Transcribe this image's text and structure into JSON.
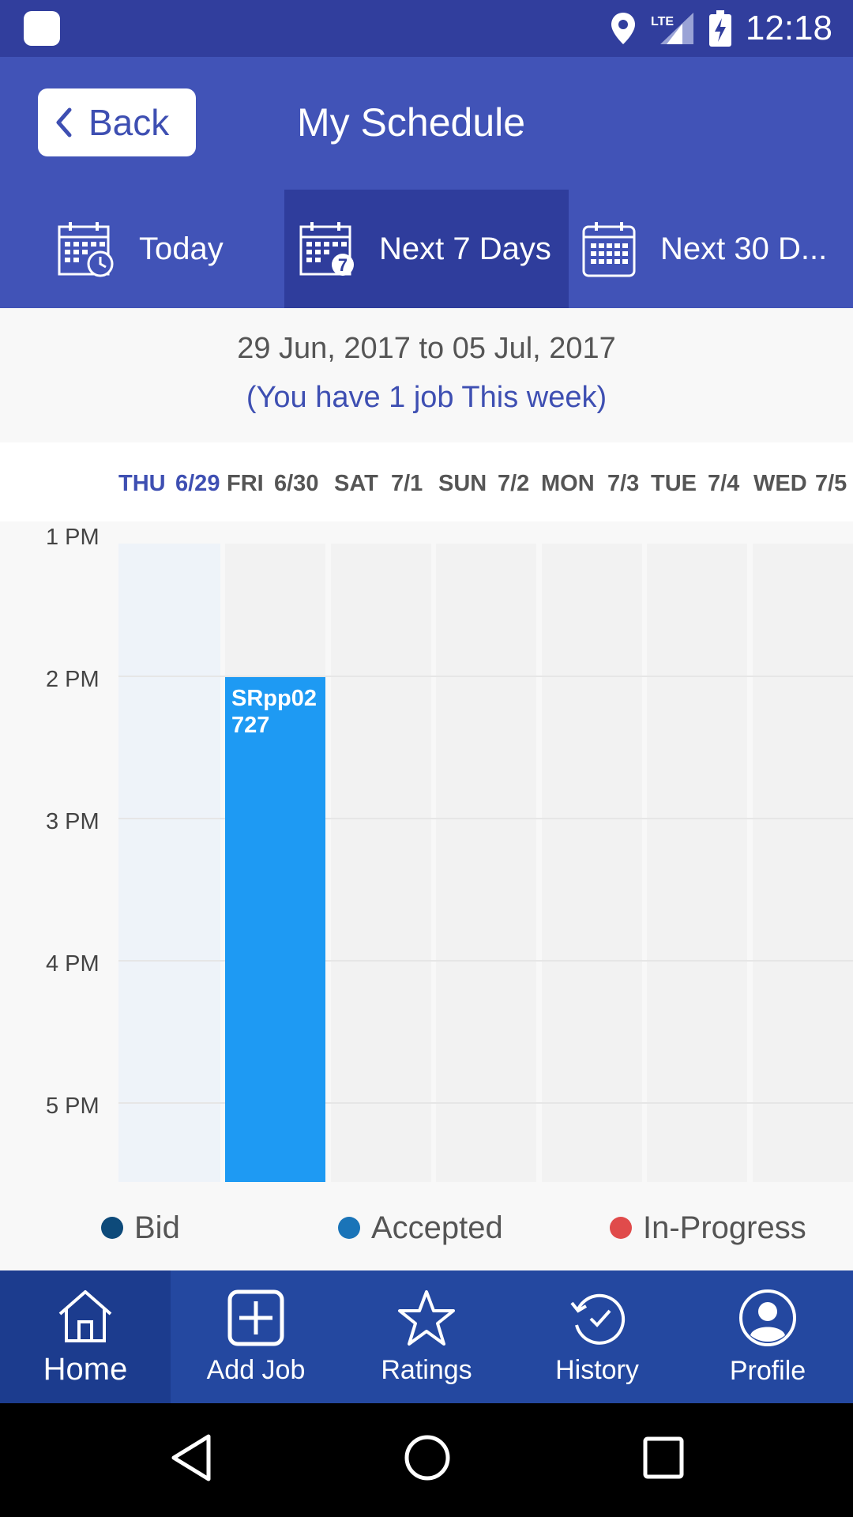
{
  "status_bar": {
    "time": "12:18",
    "network": "LTE"
  },
  "header": {
    "back_label": "Back",
    "title": "My Schedule"
  },
  "tabs": [
    {
      "label": "Today",
      "icon": "calendar-clock-icon"
    },
    {
      "label": "Next 7 Days",
      "icon": "calendar-seven-icon",
      "badge": "7"
    },
    {
      "label": "Next 30 D...",
      "icon": "calendar-month-icon"
    }
  ],
  "range": {
    "dates": "29 Jun, 2017 to 05 Jul, 2017",
    "jobs_note": "(You have 1 job This week)"
  },
  "days": [
    {
      "name": "THU",
      "date": "6/29"
    },
    {
      "name": "FRI",
      "date": "6/30"
    },
    {
      "name": "SAT",
      "date": "7/1"
    },
    {
      "name": "SUN",
      "date": "7/2"
    },
    {
      "name": "MON",
      "date": "7/3"
    },
    {
      "name": "TUE",
      "date": "7/4"
    },
    {
      "name": "WED",
      "date": "7/5"
    }
  ],
  "times": [
    "1 PM",
    "2 PM",
    "3 PM",
    "4 PM",
    "5 PM"
  ],
  "event": {
    "label": "SRpp02727",
    "day": "FRI",
    "start": "2 PM"
  },
  "legend": [
    {
      "label": "Bid",
      "color": "#0d4a7a"
    },
    {
      "label": "Accepted",
      "color": "#1a74b8"
    },
    {
      "label": "In-Progress",
      "color": "#e04b4b"
    }
  ],
  "bottom_nav": [
    {
      "label": "Home",
      "icon": "home-icon"
    },
    {
      "label": "Add Job",
      "icon": "add-icon"
    },
    {
      "label": "Ratings",
      "icon": "star-icon"
    },
    {
      "label": "History",
      "icon": "history-icon"
    },
    {
      "label": "Profile",
      "icon": "profile-icon"
    }
  ],
  "colors": {
    "primary": "#4153b7",
    "accent": "#1e9af3",
    "nav": "#2448a0"
  }
}
